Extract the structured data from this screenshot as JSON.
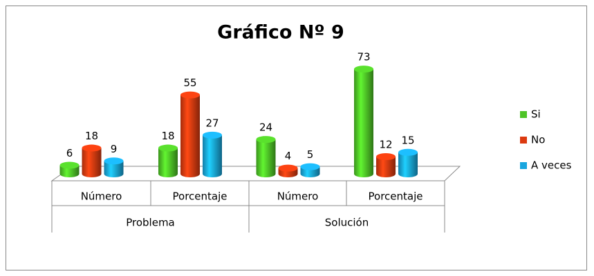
{
  "chart_data": {
    "type": "bar3d",
    "title": "Gráfico Nº 9",
    "categories": [
      "Número",
      "Porcentaje",
      "Número",
      "Porcentaje"
    ],
    "group_labels": [
      "Problema",
      "Solución"
    ],
    "series": [
      {
        "name": "Si",
        "color": "#4ec427",
        "values": [
          6,
          18,
          24,
          73
        ]
      },
      {
        "name": "No",
        "color": "#dc3a10",
        "values": [
          18,
          55,
          4,
          12
        ]
      },
      {
        "name": "A veces",
        "color": "#19a6df",
        "values": [
          9,
          27,
          5,
          15
        ]
      }
    ],
    "legend": "right"
  }
}
